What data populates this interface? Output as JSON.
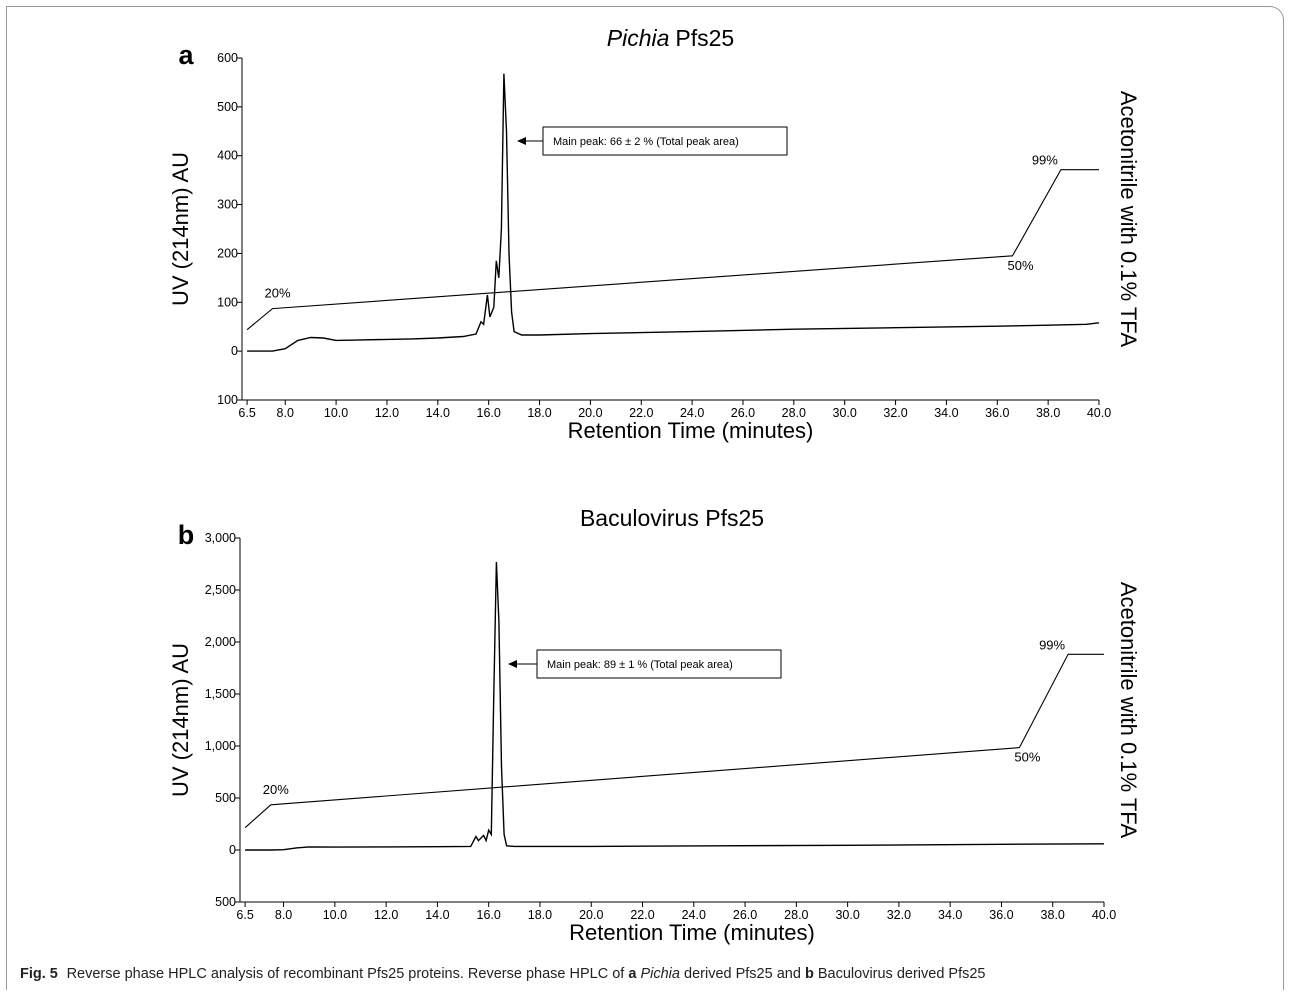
{
  "chart_data": [
    {
      "type": "line",
      "panel_label": "a",
      "title": [
        {
          "text": "Pichia",
          "italic": true
        },
        {
          "text": "Pfs25"
        }
      ],
      "x_label": "Retention Time (minutes)",
      "y_label": "UV (214nm) AU",
      "y2_label": "Acetonitrile with 0.1% TFA",
      "annotation": "Main peak: 66 ± 2 % (Total peak area)",
      "xlim": [
        6.3,
        40
      ],
      "ylim": [
        -100,
        600
      ],
      "y2lim": [
        -32,
        162.5
      ],
      "xticks": [
        {
          "value": 6.5,
          "label": "6.5"
        },
        {
          "value": 8,
          "label": "8.0"
        },
        {
          "value": 10,
          "label": "10.0"
        },
        {
          "value": 12,
          "label": "12.0"
        },
        {
          "value": 14,
          "label": "14.0"
        },
        {
          "value": 16,
          "label": "16.0"
        },
        {
          "value": 18,
          "label": "18.0"
        },
        {
          "value": 20,
          "label": "20.0"
        },
        {
          "value": 22,
          "label": "22.0"
        },
        {
          "value": 24,
          "label": "24.0"
        },
        {
          "value": 26,
          "label": "26.0"
        },
        {
          "value": 28,
          "label": "28.0"
        },
        {
          "value": 30,
          "label": "30.0"
        },
        {
          "value": 32,
          "label": "32.0"
        },
        {
          "value": 34,
          "label": "34.0"
        },
        {
          "value": 36,
          "label": "36.0"
        },
        {
          "value": 38,
          "label": "38.0"
        },
        {
          "value": 40,
          "label": "40.0"
        }
      ],
      "yticks": [
        600,
        500,
        400,
        300,
        200,
        100,
        0,
        {
          "value": -100,
          "label": "100"
        }
      ],
      "series": [
        {
          "color": "#000000",
          "x": [
            6.5,
            7.5,
            8.0,
            8.5,
            9.0,
            9.5,
            10.0,
            11,
            12,
            13,
            14,
            15,
            15.5,
            15.7,
            15.8,
            15.95,
            16.05,
            16.2,
            16.3,
            16.4,
            16.5,
            16.6,
            16.7,
            16.8,
            16.9,
            17.0,
            17.3,
            18,
            20,
            24,
            28,
            32,
            36,
            38,
            39.5,
            40
          ],
          "values": [
            0,
            0,
            5,
            22,
            28,
            27,
            22,
            23,
            24,
            25,
            27,
            30,
            35,
            60,
            55,
            115,
            70,
            90,
            185,
            150,
            250,
            568,
            450,
            200,
            80,
            40,
            33,
            33,
            36,
            40,
            45,
            48,
            51,
            53,
            55,
            58
          ]
        },
        {
          "color": "#000000",
          "axis": "y2",
          "x": [
            6.5,
            7.5,
            36.6,
            38.5,
            40
          ],
          "values": [
            8,
            20,
            50,
            99,
            99
          ],
          "value_labels": [
            null,
            "20%",
            "50%",
            "99%",
            null
          ]
        }
      ]
    },
    {
      "type": "line",
      "panel_label": "b",
      "title": [
        {
          "text": "Baculovirus Pfs25"
        }
      ],
      "x_label": "Retention Time (minutes)",
      "y_label": "UV (214nm) AU",
      "y2_label": "Acetonitrile with 0.1% TFA",
      "annotation": "Main peak: 89 ± 1 % (Total peak area)",
      "xlim": [
        6.3,
        40
      ],
      "ylim": [
        -500,
        3000
      ],
      "y2lim": [
        -31,
        160
      ],
      "xticks": [
        {
          "value": 6.5,
          "label": "6.5"
        },
        {
          "value": 8,
          "label": "8.0"
        },
        {
          "value": 10,
          "label": "10.0"
        },
        {
          "value": 12,
          "label": "12.0"
        },
        {
          "value": 14,
          "label": "14.0"
        },
        {
          "value": 16,
          "label": "16.0"
        },
        {
          "value": 18,
          "label": "18.0"
        },
        {
          "value": 20,
          "label": "20.0"
        },
        {
          "value": 22,
          "label": "22.0"
        },
        {
          "value": 24,
          "label": "24.0"
        },
        {
          "value": 26,
          "label": "26.0"
        },
        {
          "value": 28,
          "label": "28.0"
        },
        {
          "value": 30,
          "label": "30.0"
        },
        {
          "value": 32,
          "label": "32.0"
        },
        {
          "value": 34,
          "label": "34.0"
        },
        {
          "value": 36,
          "label": "36.0"
        },
        {
          "value": 38,
          "label": "38.0"
        },
        {
          "value": 40,
          "label": "40.0"
        }
      ],
      "yticks": [
        {
          "value": 3000,
          "label": "3,000"
        },
        {
          "value": 2500,
          "label": "2,500"
        },
        {
          "value": 2000,
          "label": "2,000"
        },
        {
          "value": 1500,
          "label": "1,500"
        },
        {
          "value": 1000,
          "label": "1,000"
        },
        500,
        0,
        {
          "value": -500,
          "label": "500"
        }
      ],
      "series": [
        {
          "color": "#000000",
          "x": [
            6.5,
            7.5,
            8.0,
            8.5,
            9.0,
            10,
            12,
            14,
            15.3,
            15.5,
            15.6,
            15.8,
            15.9,
            16.0,
            16.1,
            16.2,
            16.3,
            16.4,
            16.5,
            16.6,
            16.7,
            17,
            20,
            25,
            30,
            36,
            40
          ],
          "values": [
            0,
            0,
            3,
            20,
            30,
            28,
            30,
            32,
            35,
            130,
            90,
            140,
            90,
            190,
            150,
            1500,
            2770,
            2200,
            800,
            150,
            40,
            35,
            35,
            40,
            45,
            55,
            60
          ]
        },
        {
          "color": "#000000",
          "axis": "y2",
          "x": [
            6.5,
            7.5,
            36.7,
            38.6,
            40
          ],
          "values": [
            8,
            20,
            50,
            99,
            99
          ],
          "value_labels": [
            null,
            "20%",
            "50%",
            "99%",
            null
          ]
        }
      ]
    }
  ],
  "caption": [
    {
      "text": "Fig. 5",
      "bold": true
    },
    {
      "text": "Reverse phase HPLC analysis of recombinant Pfs25 proteins. Reverse phase HPLC of"
    },
    {
      "text": "a",
      "bold": true
    },
    {
      "text": "Pichia",
      "italic": true
    },
    {
      "text": "derived Pfs25 and"
    },
    {
      "text": "b",
      "bold": true
    },
    {
      "text": "Baculovirus derived Pfs25"
    }
  ]
}
